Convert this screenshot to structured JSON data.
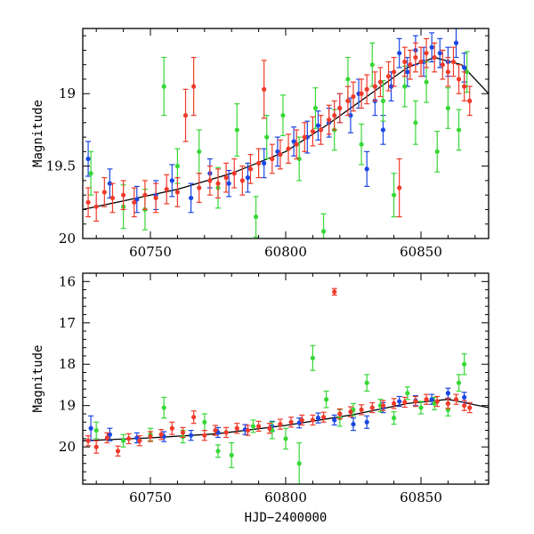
{
  "chart_data": [
    {
      "type": "scatter",
      "title": "",
      "xlabel": "",
      "ylabel": "Magnitude",
      "xlim": [
        60725,
        60875
      ],
      "ylim": [
        20.0,
        18.55
      ],
      "y_inverted": true,
      "xticks": [
        60750,
        60800,
        60850
      ],
      "yticks": [
        19,
        19.5,
        20
      ],
      "ytick_labels": [
        "19",
        "19.5",
        "20"
      ],
      "series": [
        {
          "color": "#1a47e6",
          "points": [
            [
              60727,
              19.45,
              0.12
            ],
            [
              60735,
              19.62,
              0.1
            ],
            [
              60745,
              19.73,
              0.09
            ],
            [
              60752,
              19.7,
              0.1
            ],
            [
              60758,
              19.6,
              0.11
            ],
            [
              60765,
              19.72,
              0.1
            ],
            [
              60772,
              19.55,
              0.1
            ],
            [
              60779,
              19.62,
              0.09
            ],
            [
              60786,
              19.58,
              0.1
            ],
            [
              60792,
              19.48,
              0.1
            ],
            [
              60797,
              19.4,
              0.1
            ],
            [
              60803,
              19.33,
              0.1
            ],
            [
              60808,
              19.3,
              0.11
            ],
            [
              60812,
              19.22,
              0.1
            ],
            [
              60816,
              19.2,
              0.1
            ],
            [
              60820,
              19.1,
              0.1
            ],
            [
              60824,
              19.15,
              0.12
            ],
            [
              60827,
              19.0,
              0.1
            ],
            [
              60830,
              19.52,
              0.12
            ],
            [
              60833,
              19.05,
              0.1
            ],
            [
              60836,
              19.25,
              0.1
            ],
            [
              60839,
              18.95,
              0.1
            ],
            [
              60842,
              18.72,
              0.1
            ],
            [
              60845,
              18.85,
              0.1
            ],
            [
              60848,
              18.7,
              0.1
            ],
            [
              60851,
              18.78,
              0.1
            ],
            [
              60854,
              18.68,
              0.1
            ],
            [
              60857,
              18.72,
              0.1
            ],
            [
              60860,
              18.78,
              0.1
            ],
            [
              60863,
              18.65,
              0.1
            ],
            [
              60866,
              18.82,
              0.1
            ]
          ]
        },
        {
          "color": "#37d837",
          "points": [
            [
              60728,
              19.55,
              0.15
            ],
            [
              60740,
              19.78,
              0.15
            ],
            [
              60748,
              19.8,
              0.14
            ],
            [
              60755,
              18.95,
              0.2
            ],
            [
              60760,
              19.5,
              0.12
            ],
            [
              60768,
              19.4,
              0.15
            ],
            [
              60775,
              19.65,
              0.14
            ],
            [
              60782,
              19.25,
              0.18
            ],
            [
              60789,
              19.85,
              0.14
            ],
            [
              60793,
              19.3,
              0.15
            ],
            [
              60799,
              19.15,
              0.14
            ],
            [
              60805,
              19.45,
              0.15
            ],
            [
              60811,
              19.1,
              0.14
            ],
            [
              60814,
              19.95,
              0.12
            ],
            [
              60818,
              19.25,
              0.14
            ],
            [
              60823,
              18.9,
              0.15
            ],
            [
              60828,
              19.35,
              0.14
            ],
            [
              60832,
              18.8,
              0.15
            ],
            [
              60836,
              19.05,
              0.14
            ],
            [
              60840,
              19.7,
              0.15
            ],
            [
              60844,
              18.95,
              0.14
            ],
            [
              60848,
              19.2,
              0.15
            ],
            [
              60852,
              18.92,
              0.14
            ],
            [
              60856,
              19.4,
              0.14
            ],
            [
              60860,
              19.1,
              0.14
            ],
            [
              60864,
              19.25,
              0.14
            ],
            [
              60867,
              18.85,
              0.14
            ]
          ]
        },
        {
          "color": "#f03a2a",
          "points": [
            [
              60727,
              19.75,
              0.1
            ],
            [
              60730,
              19.78,
              0.1
            ],
            [
              60733,
              19.68,
              0.1
            ],
            [
              60736,
              19.72,
              0.1
            ],
            [
              60740,
              19.7,
              0.1
            ],
            [
              60744,
              19.75,
              0.1
            ],
            [
              60748,
              19.7,
              0.1
            ],
            [
              60752,
              19.72,
              0.1
            ],
            [
              60756,
              19.66,
              0.1
            ],
            [
              60760,
              19.68,
              0.1
            ],
            [
              60763,
              19.15,
              0.18
            ],
            [
              60766,
              18.95,
              0.2
            ],
            [
              60768,
              19.65,
              0.1
            ],
            [
              60772,
              19.6,
              0.1
            ],
            [
              60775,
              19.62,
              0.1
            ],
            [
              60778,
              19.58,
              0.1
            ],
            [
              60781,
              19.55,
              0.1
            ],
            [
              60784,
              19.6,
              0.1
            ],
            [
              60787,
              19.52,
              0.1
            ],
            [
              60790,
              19.48,
              0.1
            ],
            [
              60792,
              18.97,
              0.2
            ],
            [
              60795,
              19.45,
              0.1
            ],
            [
              60798,
              19.42,
              0.1
            ],
            [
              60801,
              19.38,
              0.1
            ],
            [
              60804,
              19.35,
              0.1
            ],
            [
              60807,
              19.3,
              0.1
            ],
            [
              60810,
              19.26,
              0.1
            ],
            [
              60813,
              19.25,
              0.1
            ],
            [
              60816,
              19.18,
              0.1
            ],
            [
              60818,
              19.15,
              0.1
            ],
            [
              60820,
              19.1,
              0.1
            ],
            [
              60823,
              19.05,
              0.1
            ],
            [
              60825,
              19.02,
              0.1
            ],
            [
              60828,
              19.0,
              0.1
            ],
            [
              60830,
              18.97,
              0.1
            ],
            [
              60833,
              18.95,
              0.1
            ],
            [
              60835,
              18.92,
              0.1
            ],
            [
              60838,
              18.88,
              0.1
            ],
            [
              60840,
              18.85,
              0.1
            ],
            [
              60842,
              19.65,
              0.2
            ],
            [
              60844,
              18.78,
              0.1
            ],
            [
              60846,
              18.8,
              0.1
            ],
            [
              60848,
              18.75,
              0.1
            ],
            [
              60850,
              18.78,
              0.1
            ],
            [
              60852,
              18.72,
              0.1
            ],
            [
              60855,
              18.75,
              0.1
            ],
            [
              60858,
              18.8,
              0.1
            ],
            [
              60860,
              18.85,
              0.1
            ],
            [
              60862,
              18.78,
              0.1
            ],
            [
              60864,
              18.9,
              0.1
            ],
            [
              60866,
              18.95,
              0.1
            ],
            [
              60868,
              19.05,
              0.1
            ]
          ]
        }
      ],
      "model_curve": [
        [
          60725,
          19.8
        ],
        [
          60740,
          19.74
        ],
        [
          60760,
          19.66
        ],
        [
          60780,
          19.55
        ],
        [
          60800,
          19.4
        ],
        [
          60815,
          19.22
        ],
        [
          60830,
          19.02
        ],
        [
          60845,
          18.82
        ],
        [
          60855,
          18.75
        ],
        [
          60865,
          18.8
        ],
        [
          60875,
          19.0
        ]
      ]
    },
    {
      "type": "scatter",
      "title": "",
      "xlabel": "HJD−2400000",
      "ylabel": "Magnitude",
      "xlim": [
        60725,
        60875
      ],
      "ylim": [
        20.9,
        15.8
      ],
      "y_inverted": true,
      "xticks": [
        60750,
        60800,
        60850
      ],
      "yticks": [
        16,
        17,
        18,
        19,
        20
      ],
      "ytick_labels": [
        "16",
        "17",
        "18",
        "19",
        "20"
      ],
      "series": [
        {
          "color": "#1a47e6",
          "points": [
            [
              60728,
              19.55,
              0.3
            ],
            [
              60735,
              19.7,
              0.15
            ],
            [
              60745,
              19.78,
              0.12
            ],
            [
              60755,
              19.75,
              0.12
            ],
            [
              60765,
              19.72,
              0.12
            ],
            [
              60775,
              19.65,
              0.12
            ],
            [
              60785,
              19.58,
              0.12
            ],
            [
              60795,
              19.5,
              0.12
            ],
            [
              60805,
              19.42,
              0.12
            ],
            [
              60812,
              19.3,
              0.12
            ],
            [
              60818,
              19.35,
              0.12
            ],
            [
              60825,
              19.45,
              0.15
            ],
            [
              60830,
              19.4,
              0.15
            ],
            [
              60836,
              19.05,
              0.12
            ],
            [
              60842,
              18.9,
              0.12
            ],
            [
              60848,
              18.88,
              0.12
            ],
            [
              60854,
              18.85,
              0.12
            ],
            [
              60860,
              18.7,
              0.12
            ],
            [
              60866,
              18.8,
              0.12
            ]
          ]
        },
        {
          "color": "#37d837",
          "points": [
            [
              60730,
              19.6,
              0.2
            ],
            [
              60740,
              19.85,
              0.15
            ],
            [
              60750,
              19.7,
              0.15
            ],
            [
              60755,
              19.05,
              0.25
            ],
            [
              60762,
              19.75,
              0.15
            ],
            [
              60770,
              19.4,
              0.2
            ],
            [
              60775,
              20.1,
              0.15
            ],
            [
              60780,
              20.2,
              0.3
            ],
            [
              60788,
              19.5,
              0.15
            ],
            [
              60795,
              19.6,
              0.2
            ],
            [
              60800,
              19.8,
              0.25
            ],
            [
              60805,
              20.4,
              0.5
            ],
            [
              60810,
              17.85,
              0.3
            ],
            [
              60815,
              18.85,
              0.2
            ],
            [
              60820,
              19.3,
              0.2
            ],
            [
              60825,
              19.1,
              0.15
            ],
            [
              60830,
              18.45,
              0.2
            ],
            [
              60835,
              19.0,
              0.15
            ],
            [
              60840,
              19.3,
              0.15
            ],
            [
              60845,
              18.7,
              0.15
            ],
            [
              60850,
              19.05,
              0.15
            ],
            [
              60855,
              18.95,
              0.15
            ],
            [
              60860,
              19.1,
              0.15
            ],
            [
              60864,
              18.45,
              0.2
            ],
            [
              60866,
              18.0,
              0.25
            ]
          ]
        },
        {
          "color": "#f03a2a",
          "points": [
            [
              60727,
              19.85,
              0.12
            ],
            [
              60730,
              20.0,
              0.15
            ],
            [
              60734,
              19.78,
              0.12
            ],
            [
              60738,
              20.1,
              0.12
            ],
            [
              60742,
              19.8,
              0.12
            ],
            [
              60746,
              19.85,
              0.12
            ],
            [
              60750,
              19.75,
              0.12
            ],
            [
              60754,
              19.7,
              0.12
            ],
            [
              60758,
              19.55,
              0.15
            ],
            [
              60762,
              19.65,
              0.12
            ],
            [
              60766,
              19.28,
              0.15
            ],
            [
              60770,
              19.72,
              0.12
            ],
            [
              60774,
              19.6,
              0.12
            ],
            [
              60778,
              19.65,
              0.12
            ],
            [
              60782,
              19.55,
              0.12
            ],
            [
              60786,
              19.6,
              0.12
            ],
            [
              60790,
              19.5,
              0.12
            ],
            [
              60794,
              19.55,
              0.12
            ],
            [
              60798,
              19.45,
              0.12
            ],
            [
              60802,
              19.4,
              0.12
            ],
            [
              60806,
              19.35,
              0.12
            ],
            [
              60810,
              19.35,
              0.12
            ],
            [
              60814,
              19.28,
              0.12
            ],
            [
              60818,
              16.25,
              0.08
            ],
            [
              60820,
              19.2,
              0.12
            ],
            [
              60824,
              19.15,
              0.12
            ],
            [
              60828,
              19.1,
              0.12
            ],
            [
              60832,
              19.05,
              0.12
            ],
            [
              60836,
              19.0,
              0.12
            ],
            [
              60840,
              18.95,
              0.12
            ],
            [
              60844,
              18.92,
              0.12
            ],
            [
              60848,
              18.9,
              0.12
            ],
            [
              60852,
              18.85,
              0.12
            ],
            [
              60856,
              18.9,
              0.12
            ],
            [
              60860,
              18.95,
              0.12
            ],
            [
              60863,
              18.85,
              0.12
            ],
            [
              60866,
              19.0,
              0.12
            ],
            [
              60868,
              19.05,
              0.12
            ]
          ]
        }
      ],
      "model_curve": [
        [
          60725,
          19.85
        ],
        [
          60750,
          19.78
        ],
        [
          60775,
          19.68
        ],
        [
          60800,
          19.48
        ],
        [
          60825,
          19.22
        ],
        [
          60845,
          18.95
        ],
        [
          60860,
          18.85
        ],
        [
          60875,
          19.05
        ]
      ]
    }
  ]
}
